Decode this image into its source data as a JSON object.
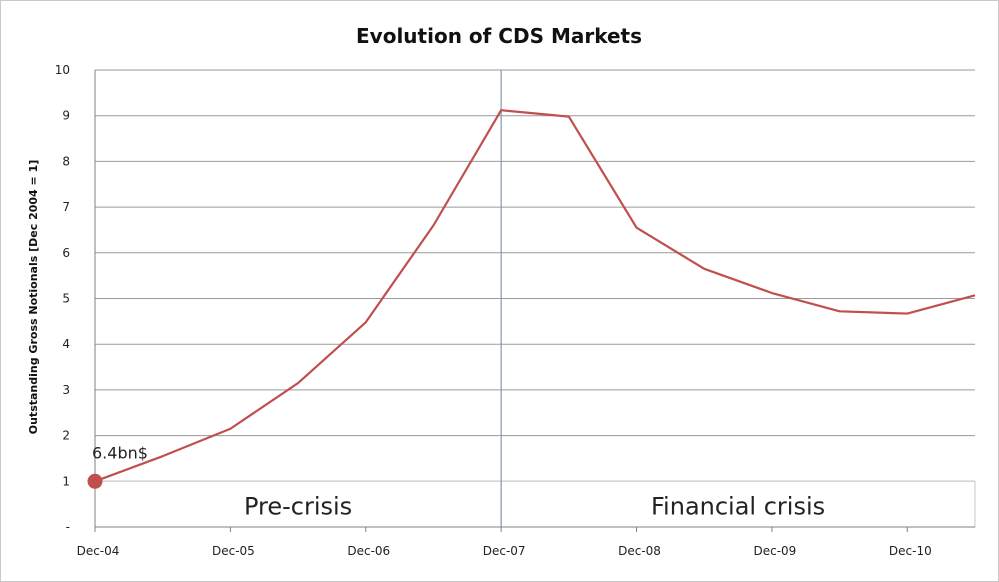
{
  "chart_data": {
    "type": "line",
    "title": "Evolution of CDS Markets",
    "xlabel": "",
    "ylabel": "Outstanding Gross Notionals [Dec 2004 = 1]",
    "ylim": [
      0,
      10
    ],
    "y_ticks": [
      "-",
      "1",
      "2",
      "3",
      "4",
      "5",
      "6",
      "7",
      "8",
      "9",
      "10"
    ],
    "x_tick_labels": [
      "Dec-04",
      "Dec-05",
      "Dec-06",
      "Dec-07",
      "Dec-08",
      "Dec-09",
      "Dec-10"
    ],
    "x_range": [
      "Dec-04",
      "Jun-11"
    ],
    "grid": "horizontal",
    "legend": "none",
    "series": [
      {
        "color": "#c0504d",
        "points": [
          {
            "x": "Dec-04",
            "y": 1.0
          },
          {
            "x": "Jun-05",
            "y": 1.55
          },
          {
            "x": "Dec-05",
            "y": 2.15
          },
          {
            "x": "Jun-06",
            "y": 3.15
          },
          {
            "x": "Dec-06",
            "y": 4.48
          },
          {
            "x": "Jun-07",
            "y": 6.6
          },
          {
            "x": "Dec-07",
            "y": 9.12
          },
          {
            "x": "Jun-08",
            "y": 8.98
          },
          {
            "x": "Dec-08",
            "y": 6.55
          },
          {
            "x": "Jun-09",
            "y": 5.65
          },
          {
            "x": "Dec-09",
            "y": 5.12
          },
          {
            "x": "Jun-10",
            "y": 4.72
          },
          {
            "x": "Dec-10",
            "y": 4.67
          },
          {
            "x": "Jun-11",
            "y": 5.07
          }
        ]
      }
    ],
    "annotations": {
      "start_point_label": "6.4bn$",
      "phases": [
        {
          "label": "Pre-crisis",
          "from": "Dec-04",
          "to": "Dec-07"
        },
        {
          "label": "Financial crisis",
          "from": "Dec-07",
          "to": "Jun-11"
        }
      ],
      "divider_at": "Dec-07"
    }
  }
}
